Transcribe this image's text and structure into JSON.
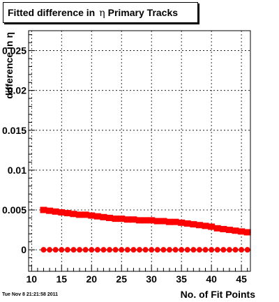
{
  "header": {
    "title_pre": "Fitted difference in",
    "title_symbol": "η",
    "title_post": "Primary Tracks"
  },
  "footer": {
    "timestamp": "Tue Nov  8 21:21:58 2011"
  },
  "chart_data": {
    "type": "scatter",
    "title": "Fitted difference in η Primary Tracks",
    "xlabel": "No. of Fit Points",
    "ylabel": "difference in η",
    "xlim": [
      9.5,
      46.5
    ],
    "ylim": [
      -0.0027,
      0.0275
    ],
    "x_ticks": [
      10,
      15,
      20,
      25,
      30,
      35,
      40,
      45
    ],
    "y_ticks": [
      0,
      0.005,
      0.01,
      0.015,
      0.02,
      0.025
    ],
    "y_tick_labels": [
      "0",
      "0.005",
      "0.01",
      "0.015",
      "0.02",
      "0.025"
    ],
    "grid": true,
    "series": [
      {
        "marker": "square",
        "color": "#ff0000",
        "x": [
          12,
          13,
          14,
          15,
          16,
          17,
          18,
          19,
          20,
          21,
          22,
          23,
          24,
          25,
          26,
          27,
          28,
          29,
          30,
          31,
          32,
          33,
          34,
          35,
          36,
          37,
          38,
          39,
          40,
          41,
          42,
          43,
          44,
          45,
          46
        ],
        "y": [
          0.005,
          0.0049,
          0.0048,
          0.0047,
          0.0046,
          0.0045,
          0.0044,
          0.0044,
          0.0043,
          0.0042,
          0.0041,
          0.004,
          0.0039,
          0.0039,
          0.0038,
          0.0038,
          0.0037,
          0.0037,
          0.0037,
          0.0036,
          0.0036,
          0.0035,
          0.0035,
          0.0034,
          0.0033,
          0.0032,
          0.0031,
          0.003,
          0.0029,
          0.0027,
          0.0026,
          0.0025,
          0.0024,
          0.0023,
          0.0022
        ]
      },
      {
        "marker": "circle",
        "color": "#ff0000",
        "x": [
          12,
          13,
          14,
          15,
          16,
          17,
          18,
          19,
          20,
          21,
          22,
          23,
          24,
          25,
          26,
          27,
          28,
          29,
          30,
          31,
          32,
          33,
          34,
          35,
          36,
          37,
          38,
          39,
          40,
          41,
          42,
          43,
          44,
          45,
          46
        ],
        "y": [
          0,
          0,
          0,
          0,
          0,
          0,
          0,
          0,
          0,
          0,
          0,
          0,
          0,
          0,
          0,
          0,
          0,
          0,
          0,
          0,
          0,
          0,
          0,
          0,
          0,
          0,
          0,
          0,
          0,
          0,
          0,
          0,
          0,
          0,
          0
        ]
      }
    ]
  }
}
